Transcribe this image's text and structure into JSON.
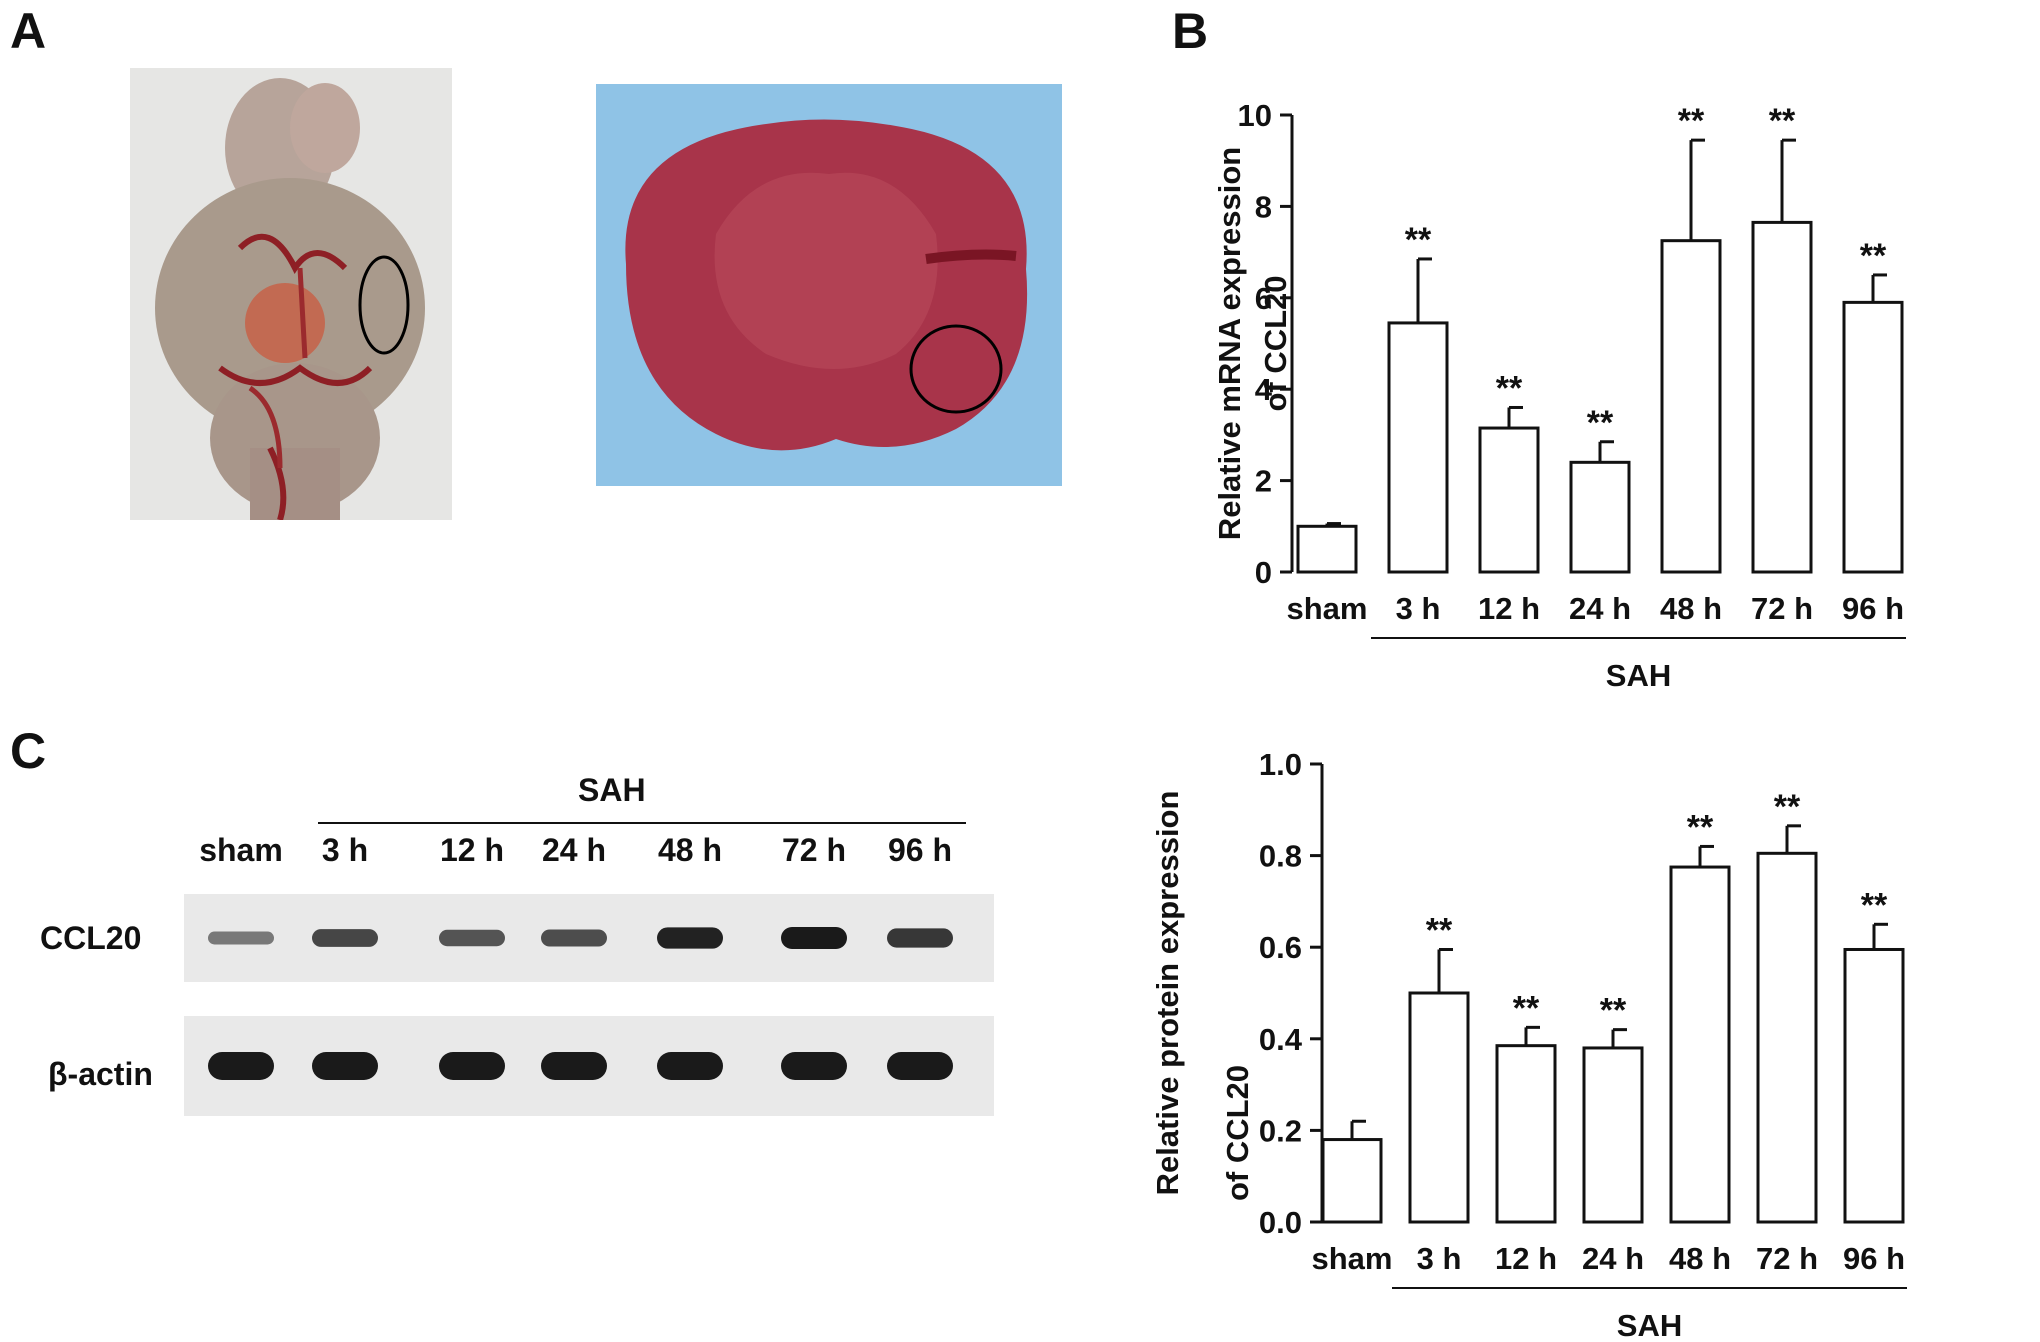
{
  "panels": {
    "a": "A",
    "b": "B",
    "c": "C"
  },
  "colors": {
    "bar_fill": "#ffffff",
    "stroke": "#111111",
    "tissue": "#a8344a",
    "blot_bg": "#e9e9e9",
    "band": "#1a1a1a",
    "photo_bg_left": "#e6e6e4",
    "photo_bg_right": "#8fc3e6"
  },
  "blot": {
    "group": "SAH",
    "lanes": [
      "sham",
      "3 h",
      "12 h",
      "24 h",
      "48 h",
      "72 h",
      "96 h"
    ],
    "rows": [
      {
        "label": "CCL20",
        "band_intensity": [
          0.35,
          0.7,
          0.6,
          0.65,
          0.95,
          1.0,
          0.8
        ]
      },
      {
        "label": "β-actin",
        "band_intensity": [
          1.0,
          1.0,
          1.0,
          1.0,
          1.0,
          1.0,
          1.0
        ]
      }
    ]
  },
  "chart_data": [
    {
      "type": "bar",
      "panel": "B",
      "categories": [
        "sham",
        "3 h",
        "12 h",
        "24 h",
        "48 h",
        "72 h",
        "96 h"
      ],
      "values": [
        1.0,
        5.45,
        3.15,
        2.4,
        7.25,
        7.65,
        5.9
      ],
      "errors": [
        0.06,
        1.4,
        0.45,
        0.45,
        2.2,
        1.8,
        0.6
      ],
      "significance": [
        "",
        "**",
        "**",
        "**",
        "**",
        "**",
        "**"
      ],
      "ylabel_line1": "Relative mRNA expression",
      "ylabel_line2": "of CCL20",
      "group_label": "SAH",
      "ylim": [
        0,
        10
      ],
      "yticks": [
        "0",
        "2",
        "4",
        "6",
        "8",
        "10"
      ],
      "ytick_values": [
        0,
        2,
        4,
        6,
        8,
        10
      ],
      "grid": false
    },
    {
      "type": "bar",
      "panel": "C",
      "categories": [
        "sham",
        "3 h",
        "12 h",
        "24 h",
        "48 h",
        "72 h",
        "96 h"
      ],
      "values": [
        0.18,
        0.5,
        0.385,
        0.38,
        0.775,
        0.805,
        0.595
      ],
      "errors": [
        0.04,
        0.095,
        0.04,
        0.04,
        0.045,
        0.06,
        0.055
      ],
      "significance": [
        "",
        "**",
        "**",
        "**",
        "**",
        "**",
        "**"
      ],
      "ylabel_line1": "Relative protein expression",
      "ylabel_line2": "of CCL20",
      "group_label": "SAH",
      "ylim": [
        0,
        1.0
      ],
      "yticks": [
        "0.0",
        "0.2",
        "0.4",
        "0.6",
        "0.8",
        "1.0"
      ],
      "ytick_values": [
        0,
        0.2,
        0.4,
        0.6,
        0.8,
        1.0
      ],
      "grid": false
    }
  ]
}
